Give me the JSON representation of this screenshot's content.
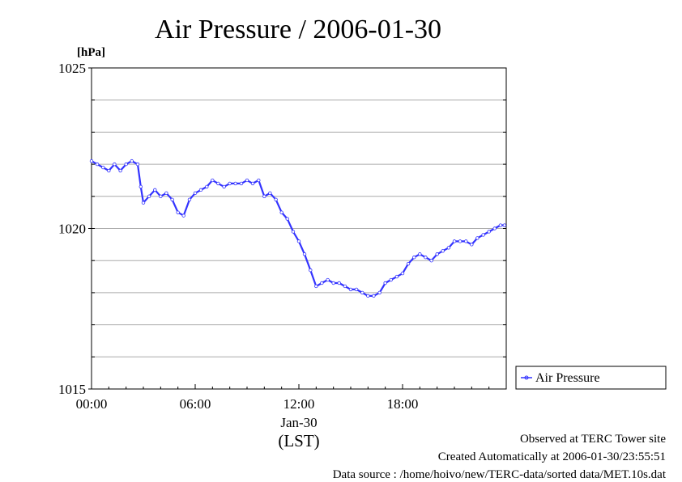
{
  "chart_data": {
    "type": "line",
    "title": "Air Pressure / 2006-01-30",
    "ylabel": "[hPa]",
    "xlabel": "(LST)",
    "date_label": "Jan-30",
    "ylim": [
      1015,
      1025
    ],
    "y_ticks": [
      {
        "value": 1015,
        "label": "1015"
      },
      {
        "value": 1020,
        "label": "1020"
      },
      {
        "value": 1025,
        "label": "1025"
      }
    ],
    "y_grid_step": 1,
    "xlim": [
      0,
      24
    ],
    "x_ticks": [
      {
        "value": 0,
        "label": "00:00"
      },
      {
        "value": 6,
        "label": "06:00"
      },
      {
        "value": 12,
        "label": "12:00"
      },
      {
        "value": 18,
        "label": "18:00"
      }
    ],
    "grid": "horizontal",
    "legend_position": "right",
    "color": "#3333ff",
    "series": [
      {
        "name": "Air Pressure",
        "x": [
          0.0,
          0.33,
          0.67,
          1.0,
          1.33,
          1.67,
          2.0,
          2.33,
          2.67,
          2.85,
          3.0,
          3.33,
          3.67,
          4.0,
          4.33,
          4.67,
          5.0,
          5.33,
          5.67,
          6.0,
          6.33,
          6.67,
          7.0,
          7.33,
          7.67,
          8.0,
          8.33,
          8.67,
          9.0,
          9.33,
          9.67,
          10.0,
          10.33,
          10.67,
          11.0,
          11.33,
          11.67,
          12.0,
          12.33,
          12.67,
          13.0,
          13.33,
          13.67,
          14.0,
          14.33,
          14.67,
          15.0,
          15.33,
          15.67,
          16.0,
          16.33,
          16.67,
          17.0,
          17.33,
          17.67,
          18.0,
          18.33,
          18.67,
          19.0,
          19.33,
          19.67,
          20.0,
          20.33,
          20.67,
          21.0,
          21.33,
          21.67,
          22.0,
          22.33,
          22.67,
          23.0,
          23.33,
          23.67,
          23.9
        ],
        "values": [
          1022.1,
          1022.0,
          1021.9,
          1021.8,
          1022.0,
          1021.8,
          1022.0,
          1022.1,
          1022.0,
          1021.3,
          1020.8,
          1021.0,
          1021.2,
          1021.0,
          1021.1,
          1020.9,
          1020.5,
          1020.4,
          1020.9,
          1021.1,
          1021.2,
          1021.3,
          1021.5,
          1021.4,
          1021.3,
          1021.4,
          1021.4,
          1021.4,
          1021.5,
          1021.4,
          1021.5,
          1021.0,
          1021.1,
          1020.9,
          1020.5,
          1020.3,
          1019.9,
          1019.6,
          1019.2,
          1018.7,
          1018.2,
          1018.3,
          1018.4,
          1018.3,
          1018.3,
          1018.2,
          1018.1,
          1018.1,
          1018.0,
          1017.9,
          1017.9,
          1018.0,
          1018.3,
          1018.4,
          1018.5,
          1018.6,
          1018.9,
          1019.1,
          1019.2,
          1019.1,
          1019.0,
          1019.2,
          1019.3,
          1019.4,
          1019.6,
          1019.6,
          1019.6,
          1019.5,
          1019.7,
          1019.8,
          1019.9,
          1020.0,
          1020.1,
          1020.1
        ]
      }
    ]
  },
  "footer": {
    "observed": "Observed at TERC Tower site",
    "created": "Created Automatically at 2006-01-30/23:55:51",
    "source": "Data source : /home/hoivo/new/TERC-data/sorted  data/MET.10s.dat"
  }
}
